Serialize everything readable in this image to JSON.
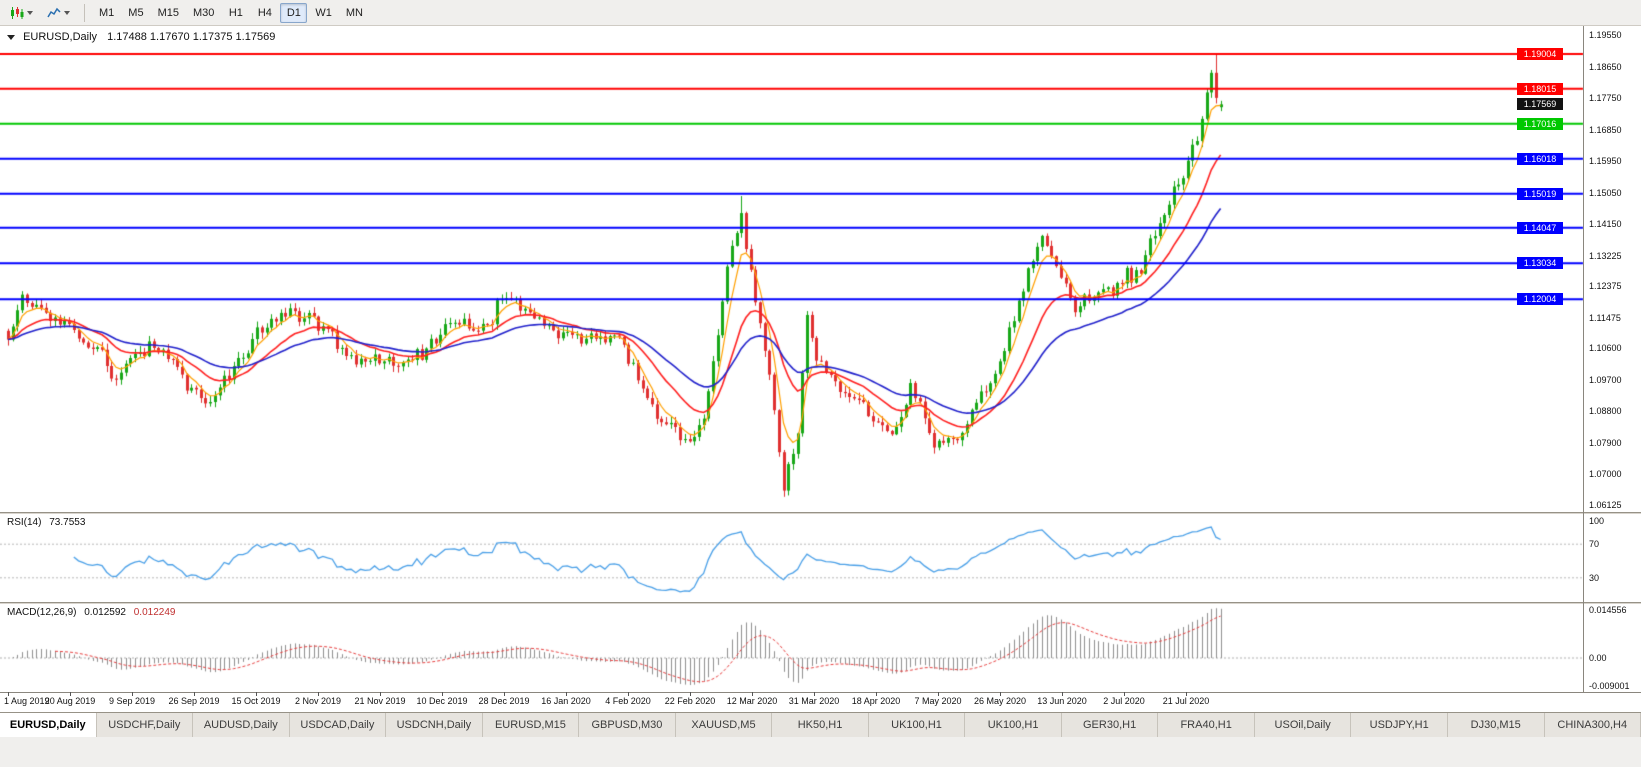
{
  "toolbar": {
    "timeframes": [
      "M1",
      "M5",
      "M15",
      "M30",
      "H1",
      "H4",
      "D1",
      "W1",
      "MN"
    ],
    "active_timeframe": "D1"
  },
  "chart": {
    "title": "EURUSD,Daily",
    "ohlc_text": "1.17488 1.17670 1.17375 1.17569",
    "open": "1.17488",
    "high": "1.17670",
    "low": "1.17375",
    "close": "1.17569",
    "current_price": "1.17569",
    "current_price_badge_color": "#111111",
    "price_axis": [
      "1.19550",
      "1.18650",
      "1.17750",
      "1.16850",
      "1.15950",
      "1.15050",
      "1.14150",
      "1.13225",
      "1.12375",
      "1.11475",
      "1.10600",
      "1.09700",
      "1.08800",
      "1.07900",
      "1.07000",
      "1.06125"
    ],
    "levels": [
      {
        "price": 1.19004,
        "label": "1.19004",
        "color": "#ff0000"
      },
      {
        "price": 1.18015,
        "label": "1.18015",
        "color": "#ff0000"
      },
      {
        "price": 1.17016,
        "label": "1.17016",
        "color": "#00c800"
      },
      {
        "price": 1.16018,
        "label": "1.16018",
        "color": "#0000ff"
      },
      {
        "price": 1.15019,
        "label": "1.15019",
        "color": "#0000ff"
      },
      {
        "price": 1.14047,
        "label": "1.14047",
        "color": "#0000ff"
      },
      {
        "price": 1.13034,
        "label": "1.13034",
        "color": "#0000ff"
      },
      {
        "price": 1.12004,
        "label": "1.12004",
        "color": "#0000ff"
      }
    ],
    "time_axis": [
      "1 Aug 2019",
      "20 Aug 2019",
      "9 Sep 2019",
      "26 Sep 2019",
      "15 Oct 2019",
      "2 Nov 2019",
      "21 Nov 2019",
      "10 Dec 2019",
      "28 Dec 2019",
      "16 Jan 2020",
      "4 Feb 2020",
      "22 Feb 2020",
      "12 Mar 2020",
      "31 Mar 2020",
      "18 Apr 2020",
      "7 May 2020",
      "26 May 2020",
      "13 Jun 2020",
      "2 Jul 2020",
      "21 Jul 2020"
    ]
  },
  "indicators": {
    "rsi": {
      "title": "RSI(14)",
      "value": "73.7553",
      "axis": [
        "100",
        "70",
        "30"
      ],
      "levels": [
        70,
        30
      ],
      "color": "#4aa0e8"
    },
    "macd": {
      "title": "MACD(12,26,9)",
      "value_main": "0.012592",
      "value_signal": "0.012249",
      "axis": [
        "0.014556",
        "0.00",
        "-0.009001"
      ]
    }
  },
  "tabs": {
    "active_index": 0,
    "items": [
      "EURUSD,Daily",
      "USDCHF,Daily",
      "AUDUSD,Daily",
      "USDCAD,Daily",
      "USDCNH,Daily",
      "EURUSD,M15",
      "GBPUSD,M30",
      "XAUUSD,M5",
      "HK50,H1",
      "UK100,H1",
      "UK100,H1",
      "GER30,H1",
      "FRA40,H1",
      "USOil,Daily",
      "USDJPY,H1",
      "DJ30,M15",
      "CHINA300,H4"
    ]
  },
  "chart_data": {
    "type": "candlestick",
    "symbol": "EURUSD",
    "timeframe": "Daily",
    "visible_range": {
      "start": "1 Aug 2019",
      "end": "3 Aug 2020"
    },
    "price_axis_range": [
      1.0593,
      1.1981
    ],
    "num_candles": 259,
    "last_candle": {
      "o": 1.17488,
      "h": 1.1767,
      "l": 1.17375,
      "c": 1.17569
    },
    "close_anchors": [
      [
        0,
        1.1085
      ],
      [
        3,
        1.12
      ],
      [
        8,
        1.117
      ],
      [
        15,
        1.108
      ],
      [
        20,
        1.106
      ],
      [
        22,
        1.097
      ],
      [
        30,
        1.107
      ],
      [
        35,
        1.102
      ],
      [
        42,
        1.089
      ],
      [
        50,
        1.104
      ],
      [
        56,
        1.115
      ],
      [
        64,
        1.1152
      ],
      [
        74,
        1.102
      ],
      [
        85,
        1.1018
      ],
      [
        94,
        1.113
      ],
      [
        100,
        1.112
      ],
      [
        107,
        1.1213
      ],
      [
        115,
        1.1122
      ],
      [
        122,
        1.1085
      ],
      [
        130,
        1.1094
      ],
      [
        136,
        1.091
      ],
      [
        144,
        1.079
      ],
      [
        148,
        1.085
      ],
      [
        150,
        1.1027
      ],
      [
        153,
        1.128
      ],
      [
        156,
        1.1447
      ],
      [
        159,
        1.1185
      ],
      [
        162,
        1.0995
      ],
      [
        165,
        1.0665
      ],
      [
        168,
        1.081
      ],
      [
        170,
        1.1147
      ],
      [
        172,
        1.1031
      ],
      [
        180,
        1.0915
      ],
      [
        188,
        1.0823
      ],
      [
        192,
        1.0955
      ],
      [
        197,
        1.0783
      ],
      [
        202,
        1.081
      ],
      [
        207,
        1.095
      ],
      [
        210,
        1.098
      ],
      [
        214,
        1.1135
      ],
      [
        217,
        1.129
      ],
      [
        220,
        1.1375
      ],
      [
        227,
        1.1177
      ],
      [
        232,
        1.1219
      ],
      [
        236,
        1.124
      ],
      [
        241,
        1.1284
      ],
      [
        245,
        1.141
      ],
      [
        249,
        1.1525
      ],
      [
        251,
        1.159
      ],
      [
        253,
        1.165
      ],
      [
        254,
        1.1715
      ],
      [
        255,
        1.179
      ],
      [
        256,
        1.1847
      ],
      [
        257,
        1.1778
      ],
      [
        258,
        1.17569
      ]
    ],
    "candle_overrides": {
      "156": {
        "h": 1.1495
      },
      "165": {
        "l": 1.0636
      },
      "257": {
        "h": 1.19004
      },
      "258": {
        "o": 1.17488,
        "h": 1.1767,
        "l": 1.17375,
        "c": 1.17569
      }
    },
    "moving_averages": [
      {
        "period": 5,
        "color": "#ffa000"
      },
      {
        "period": 16,
        "color": "#ff2020"
      },
      {
        "period": 34,
        "color": "#2222cc"
      }
    ],
    "colors": {
      "up": "#18a818",
      "down": "#e03030",
      "macd_histogram": "#8f8f8f",
      "macd_signal": "#e84040"
    },
    "rsi_period": 14,
    "macd_params": [
      12,
      26,
      9
    ]
  }
}
